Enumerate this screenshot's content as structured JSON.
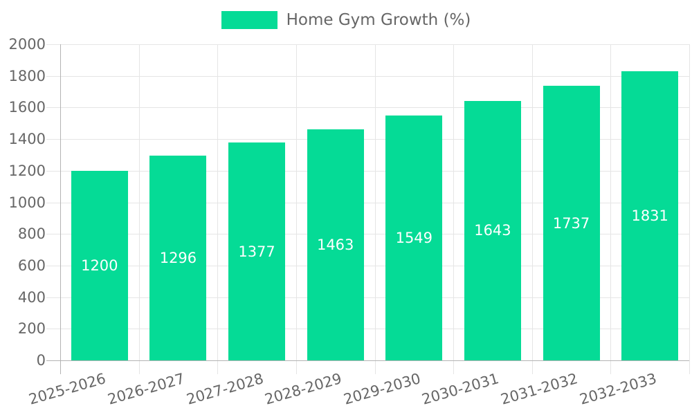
{
  "chart_data": {
    "type": "bar",
    "title": "Home Gym Growth (%)",
    "legend_label": "Home Gym Growth (%)",
    "legend_position": "top",
    "categories": [
      "2025-2026",
      "2026-2027",
      "2027-2028",
      "2028-2029",
      "2029-2030",
      "2030-2031",
      "2031-2032",
      "2032-2033"
    ],
    "series": [
      {
        "name": "Home Gym Growth (%)",
        "values": [
          1200,
          1296,
          1377,
          1463,
          1549,
          1643,
          1737,
          1831
        ]
      }
    ],
    "xlabel": "",
    "ylabel": "",
    "ylim": [
      0,
      2000
    ],
    "ytick_step": 200,
    "yticks": [
      0,
      200,
      400,
      600,
      800,
      1000,
      1200,
      1400,
      1600,
      1800,
      2000
    ],
    "grid": true,
    "value_labels": "inside-center",
    "colors": {
      "bar": "#05DB96",
      "axis_text": "#666666",
      "grid_light": "#e5e5e5",
      "grid_zero": "#b3b3b3",
      "value_label": "#ffffff",
      "background": "#ffffff"
    }
  }
}
